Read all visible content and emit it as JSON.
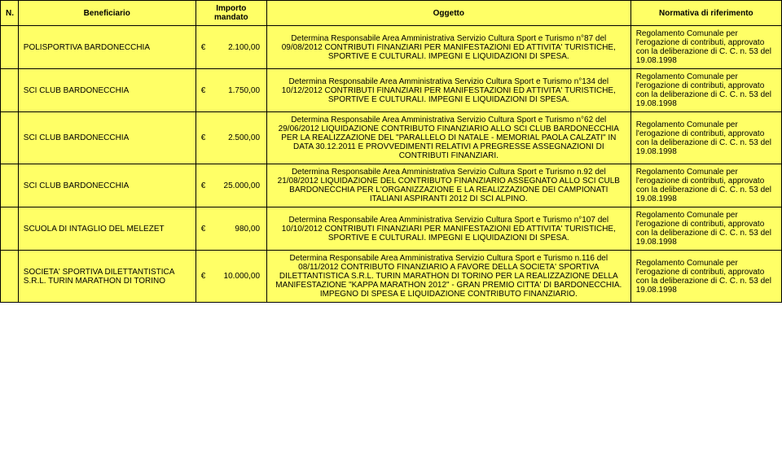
{
  "header": {
    "n": "N.",
    "beneficiario": "Beneficiario",
    "importo": "Importo mandato",
    "oggetto": "Oggetto",
    "normativa": "Normativa di riferimento"
  },
  "rows": [
    {
      "beneficiario": "POLISPORTIVA BARDONECCHIA",
      "importo": "€          2.100,00",
      "oggetto": "Determina Responsabile Area Amministrativa Servizio Cultura Sport e Turismo n°87  del 09/08/2012 CONTRIBUTI FINANZIARI PER MANIFESTAZIONI ED ATTIVITA' TURISTICHE, SPORTIVE E CULTURALI. IMPEGNI E LIQUIDAZIONI DI SPESA.",
      "normativa": "Regolamento Comunale per l'erogazione di contributi, approvato con la deliberazione di C. C. n. 53 del 19.08.1998"
    },
    {
      "beneficiario": "SCI CLUB BARDONECCHIA",
      "importo": "€          1.750,00",
      "oggetto": "Determina Responsabile Area Amministrativa Servizio Cultura Sport e Turismo n°134  del 10/12/2012 CONTRIBUTI FINANZIARI PER MANIFESTAZIONI ED ATTIVITA' TURISTICHE, SPORTIVE E CULTURALI. IMPEGNI E LIQUIDAZIONI DI SPESA.",
      "normativa": "Regolamento Comunale per l'erogazione di contributi, approvato con la deliberazione di C. C. n. 53 del 19.08.1998"
    },
    {
      "beneficiario": "SCI CLUB BARDONECCHIA",
      "importo": "€          2.500,00",
      "oggetto": "Determina Responsabile Area Amministrativa Servizio Cultura Sport e Turismo n°62 del 29/06/2012 LIQUIDAZIONE CONTRIBUTO FINANZIARIO ALLO SCI CLUB BARDONECCHIA PER LA REALIZZAZIONE DEL \"PARALLELO DI NATALE - MEMORIAL PAOLA CALZATI\" IN DATA 30.12.2011 E PROVVEDIMENTI RELATIVI A PREGRESSE ASSEGNAZIONI DI CONTRIBUTI FINANZIARI.",
      "normativa": "Regolamento Comunale per l'erogazione di contributi, approvato con la deliberazione di C. C. n. 53 del 19.08.1998"
    },
    {
      "beneficiario": "SCI CLUB BARDONECCHIA",
      "importo": "€        25.000,00",
      "oggetto": "Determina Responsabile Area Amministrativa Servizio Cultura Sport e Turismo n.92 del 21/08/2012 LIQUIDAZIONE DEL CONTRIBUTO FINANZIARIO ASSEGNATO ALLO SCI CULB BARDONECCHIA PER L'ORGANIZZAZIONE E LA REALIZZAZIONE DEI CAMPIONATI ITALIANI ASPIRANTI 2012 DI SCI ALPINO.",
      "normativa": "Regolamento Comunale per l'erogazione di contributi, approvato con la deliberazione di C. C. n. 53 del 19.08.1998"
    },
    {
      "beneficiario": "SCUOLA DI INTAGLIO DEL MELEZET",
      "importo": "€             980,00",
      "oggetto": "Determina Responsabile Area Amministrativa Servizio Cultura Sport e Turismo n°107  del 10/10/2012 CONTRIBUTI FINANZIARI PER MANIFESTAZIONI ED ATTIVITA' TURISTICHE, SPORTIVE E CULTURALI. IMPEGNI E LIQUIDAZIONI DI SPESA.",
      "normativa": "Regolamento Comunale per l'erogazione di contributi, approvato con la deliberazione di C. C. n. 53 del 19.08.1998"
    },
    {
      "beneficiario": "SOCIETA' SPORTIVA DILETTANTISTICA S.R.L. TURIN MARATHON DI TORINO",
      "importo": "€        10.000,00",
      "oggetto": "Determina Responsabile Area Amministrativa Servizio Cultura Sport e Turismo n.116 del 08/11/2012 CONTRIBUTO FINANZIARIO A FAVORE DELLA SOCIETA' SPORTIVA DILETTANTISTICA S.R.L. TURIN MARATHON DI TORINO PER LA REALIZZAZIONE DELLA MANIFESTAZIONE \"KAPPA MARATHON 2012\" - GRAN PREMIO CITTA' DI BARDONECCHIA. IMPEGNO DI SPESA E LIQUIDAZIONE CONTRIBUTO FINANZIARIO.",
      "normativa": "Regolamento Comunale per l'erogazione di contributi, approvato con la deliberazione di C. C. n. 53 del 19.08.1998"
    }
  ]
}
